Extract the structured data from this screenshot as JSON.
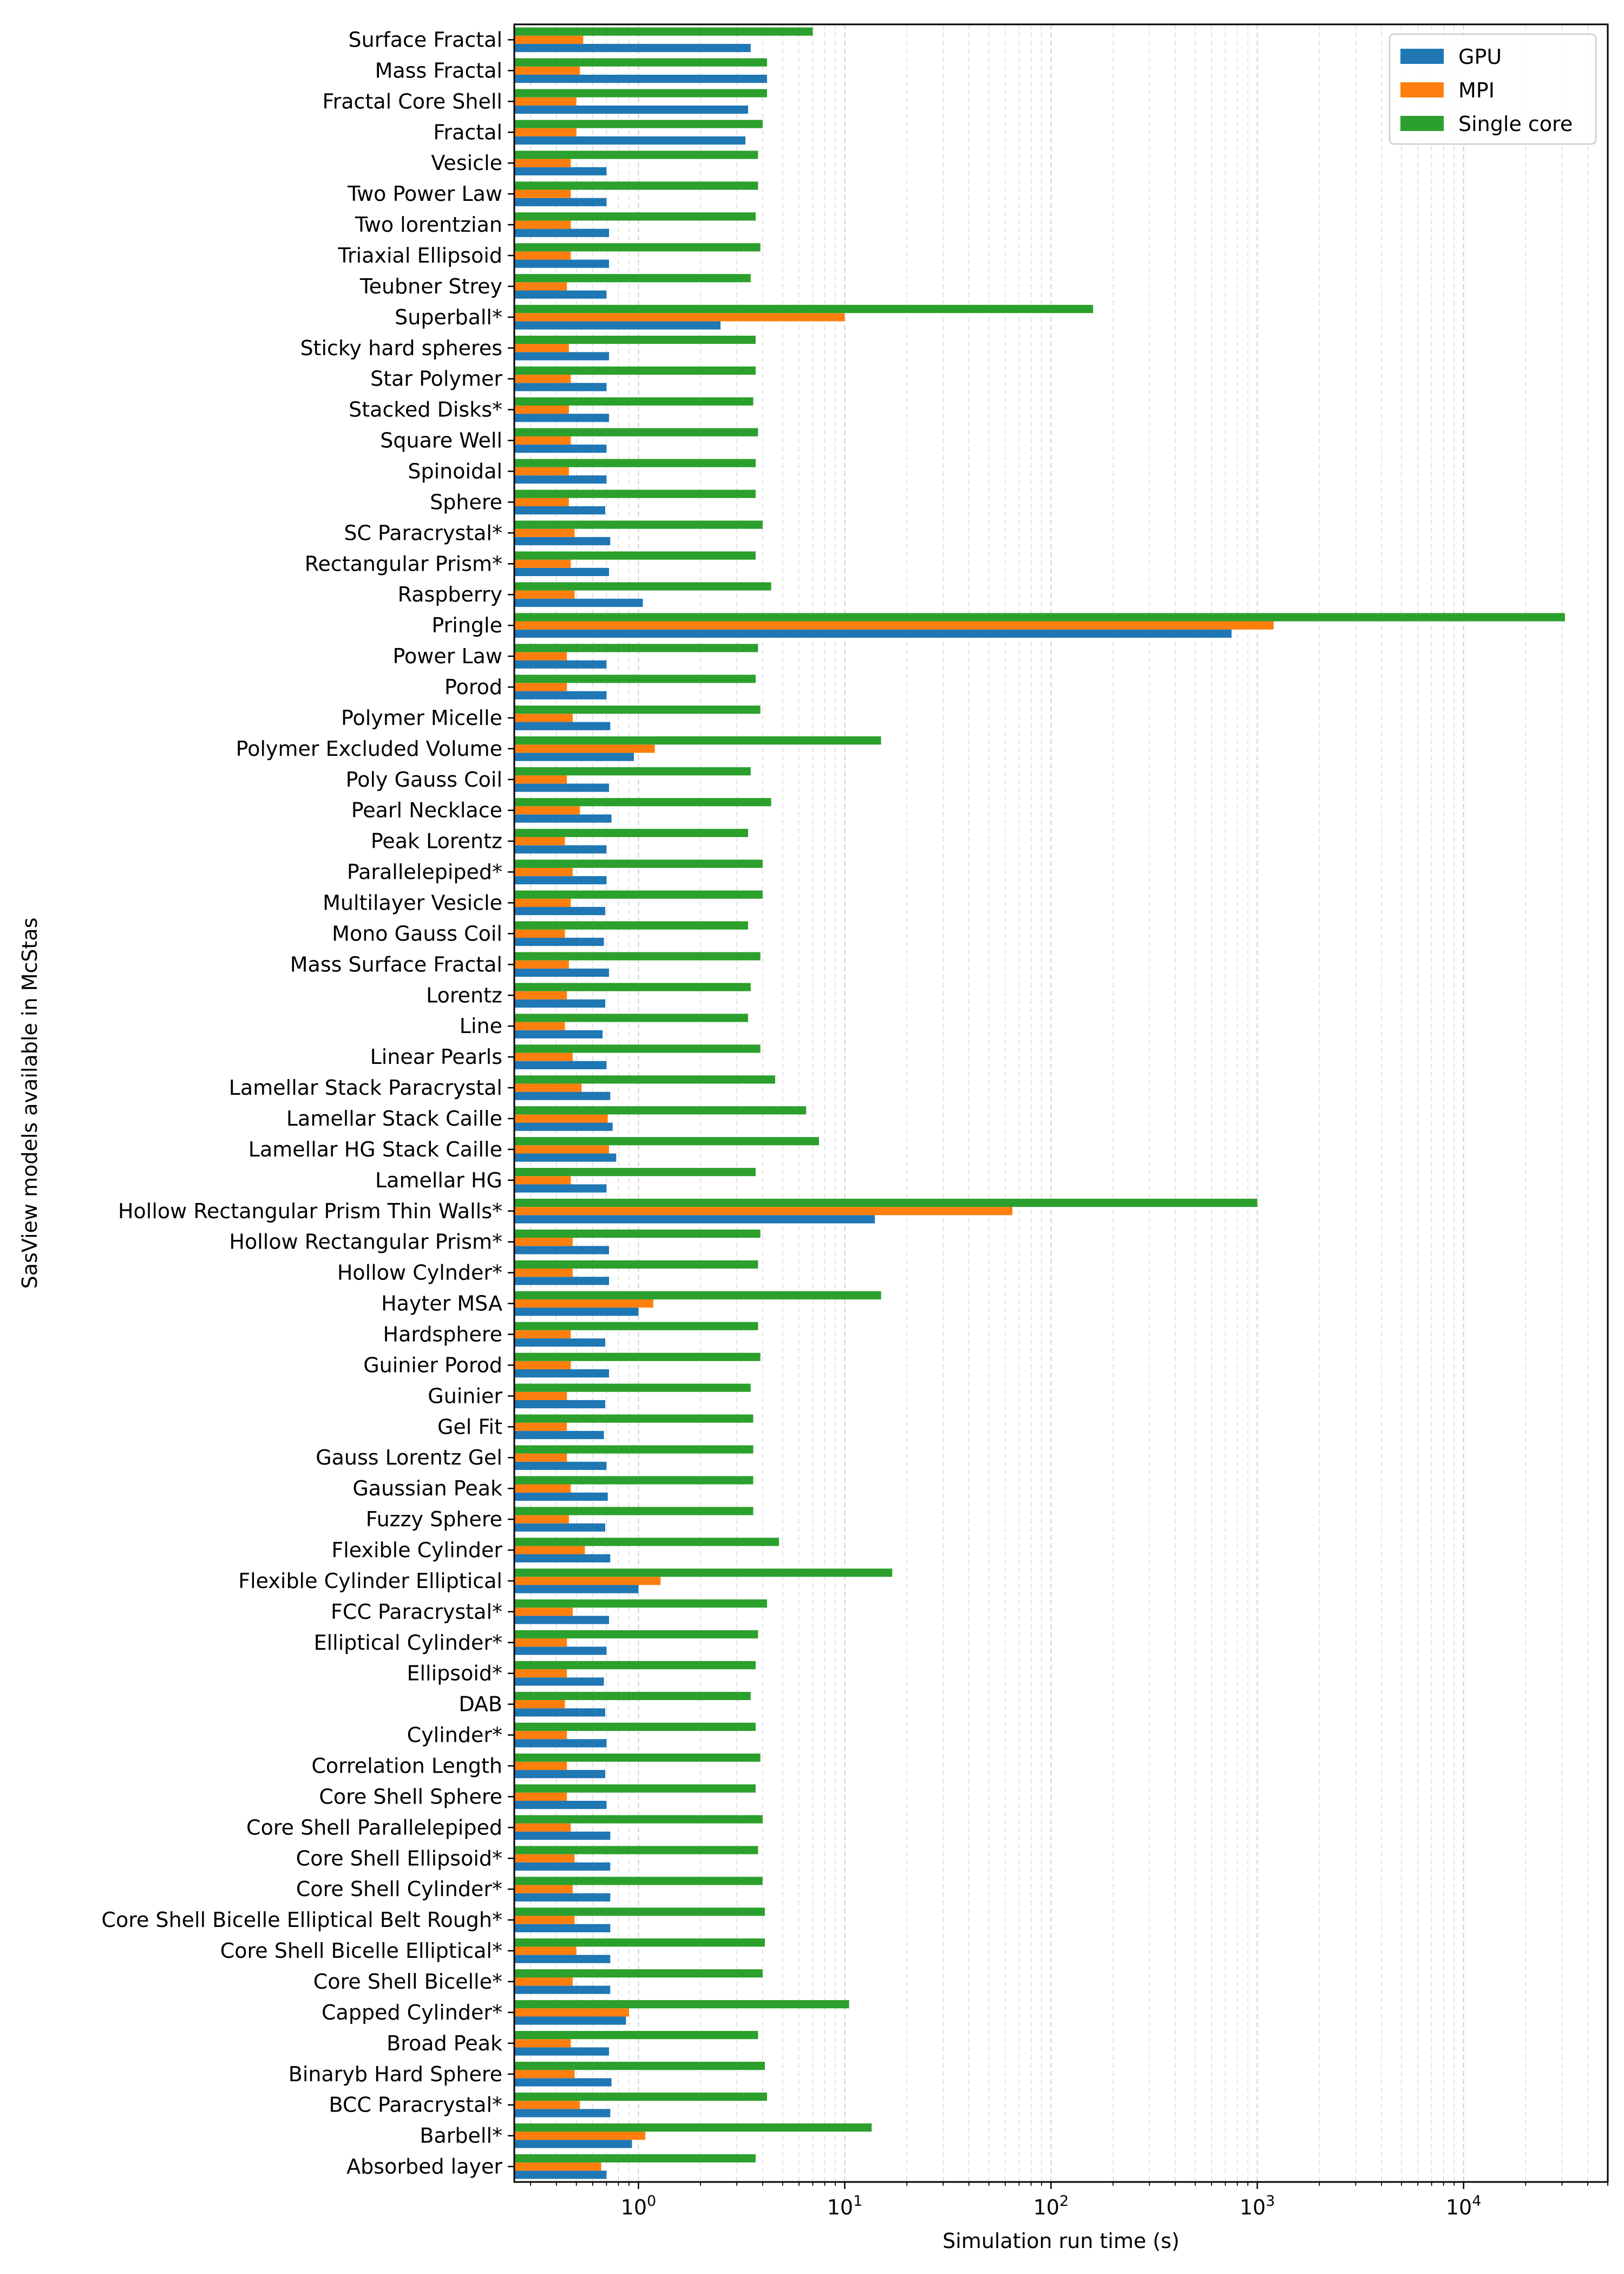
{
  "chart_data": {
    "type": "bar",
    "orientation": "horizontal",
    "title": "",
    "xlabel": "Simulation run time (s)",
    "ylabel": "SasView models available in McStas",
    "xscale": "log",
    "xlim": [
      0.25,
      50000
    ],
    "xticks": [
      {
        "value": 1,
        "base": "10",
        "exp": "0"
      },
      {
        "value": 10,
        "base": "10",
        "exp": "1"
      },
      {
        "value": 100,
        "base": "10",
        "exp": "2"
      },
      {
        "value": 1000,
        "base": "10",
        "exp": "3"
      },
      {
        "value": 10000,
        "base": "10",
        "exp": "4"
      }
    ],
    "grid": "x-major-and-minor-dashed",
    "legend": "top-right",
    "categories": [
      "Surface Fractal",
      "Mass Fractal",
      "Fractal Core Shell",
      "Fractal",
      "Vesicle",
      "Two Power Law",
      "Two lorentzian",
      "Triaxial Ellipsoid",
      "Teubner Strey",
      "Superball*",
      "Sticky hard spheres",
      "Star Polymer",
      "Stacked Disks*",
      "Square Well",
      "Spinoidal",
      "Sphere",
      "SC Paracrystal*",
      "Rectangular Prism*",
      "Raspberry",
      "Pringle",
      "Power Law",
      "Porod",
      "Polymer Micelle",
      "Polymer Excluded Volume",
      "Poly Gauss Coil",
      "Pearl Necklace",
      "Peak Lorentz",
      "Parallelepiped*",
      "Multilayer Vesicle",
      "Mono Gauss Coil",
      "Mass Surface Fractal",
      "Lorentz",
      "Line",
      "Linear Pearls",
      "Lamellar Stack Paracrystal",
      "Lamellar Stack Caille",
      "Lamellar HG Stack Caille",
      "Lamellar HG",
      "Hollow Rectangular Prism Thin Walls*",
      "Hollow Rectangular Prism*",
      "Hollow Cylnder*",
      "Hayter MSA",
      "Hardsphere",
      "Guinier Porod",
      "Guinier",
      "Gel Fit",
      "Gauss Lorentz Gel",
      "Gaussian Peak",
      "Fuzzy Sphere",
      "Flexible Cylinder",
      "Flexible Cylinder Elliptical",
      "FCC Paracrystal*",
      "Elliptical Cylinder*",
      "Ellipsoid*",
      "DAB",
      "Cylinder*",
      "Correlation Length",
      "Core Shell Sphere",
      "Core Shell Parallelepiped",
      "Core Shell Ellipsoid*",
      "Core Shell Cylinder*",
      "Core Shell Bicelle Elliptical Belt Rough*",
      "Core Shell Bicelle Elliptical*",
      "Core Shell Bicelle*",
      "Capped Cylinder*",
      "Broad Peak",
      "Binaryb Hard Sphere",
      "BCC Paracrystal*",
      "Barbell*",
      "Absorbed layer"
    ],
    "series": [
      {
        "name": "GPU",
        "color": "#1f77b4",
        "values": [
          3.5,
          4.2,
          3.4,
          3.3,
          0.7,
          0.7,
          0.72,
          0.72,
          0.7,
          2.5,
          0.72,
          0.7,
          0.72,
          0.7,
          0.7,
          0.69,
          0.73,
          0.72,
          1.05,
          750,
          0.7,
          0.7,
          0.73,
          0.95,
          0.72,
          0.74,
          0.7,
          0.7,
          0.69,
          0.68,
          0.72,
          0.69,
          0.67,
          0.7,
          0.73,
          0.75,
          0.78,
          0.7,
          14,
          0.72,
          0.72,
          1.0,
          0.69,
          0.72,
          0.69,
          0.68,
          0.7,
          0.71,
          0.69,
          0.73,
          1.0,
          0.72,
          0.7,
          0.68,
          0.69,
          0.7,
          0.69,
          0.7,
          0.73,
          0.73,
          0.73,
          0.73,
          0.73,
          0.73,
          0.87,
          0.72,
          0.74,
          0.73,
          0.93,
          0.7
        ]
      },
      {
        "name": "MPI",
        "color": "#ff7f0e",
        "values": [
          0.54,
          0.52,
          0.5,
          0.5,
          0.47,
          0.47,
          0.47,
          0.47,
          0.45,
          10,
          0.46,
          0.47,
          0.46,
          0.47,
          0.46,
          0.46,
          0.49,
          0.47,
          0.49,
          1200,
          0.45,
          0.45,
          0.48,
          1.2,
          0.45,
          0.52,
          0.44,
          0.48,
          0.47,
          0.44,
          0.46,
          0.45,
          0.44,
          0.48,
          0.53,
          0.71,
          0.72,
          0.47,
          65,
          0.48,
          0.48,
          1.18,
          0.47,
          0.47,
          0.45,
          0.45,
          0.45,
          0.47,
          0.46,
          0.55,
          1.28,
          0.48,
          0.45,
          0.45,
          0.44,
          0.45,
          0.45,
          0.45,
          0.47,
          0.49,
          0.48,
          0.49,
          0.5,
          0.48,
          0.9,
          0.47,
          0.49,
          0.52,
          1.08,
          0.66
        ]
      },
      {
        "name": "Single core",
        "color": "#2ca02c",
        "values": [
          7,
          4.2,
          4.2,
          4.0,
          3.8,
          3.8,
          3.7,
          3.9,
          3.5,
          160,
          3.7,
          3.7,
          3.6,
          3.8,
          3.7,
          3.7,
          4.0,
          3.7,
          4.4,
          31000,
          3.8,
          3.7,
          3.9,
          15,
          3.5,
          4.4,
          3.4,
          4.0,
          4.0,
          3.4,
          3.9,
          3.5,
          3.4,
          3.9,
          4.6,
          6.5,
          7.5,
          3.7,
          1000,
          3.9,
          3.8,
          15,
          3.8,
          3.9,
          3.5,
          3.6,
          3.6,
          3.6,
          3.6,
          4.8,
          17,
          4.2,
          3.8,
          3.7,
          3.5,
          3.7,
          3.9,
          3.7,
          4.0,
          3.8,
          4.0,
          4.1,
          4.1,
          4.0,
          10.5,
          3.8,
          4.1,
          4.2,
          13.5,
          3.7
        ]
      }
    ]
  }
}
